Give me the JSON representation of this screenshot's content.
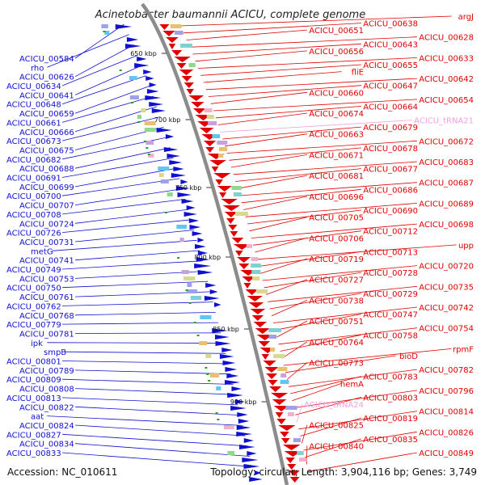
{
  "title": "Acinetobacter baumannii ACICU, complete genome",
  "footer": {
    "accession": "Accession: NC_010611",
    "topology": "Topology: circular; Length: 3,904,116 bp; Genes: 3,749"
  },
  "colors": {
    "forward": "#1010d0",
    "reverse": "#e00000",
    "rna": "#f0a0e0",
    "backbone": "#8c8c8c",
    "tick": "#22a022"
  },
  "scale_ticks": [
    "650 kbp",
    "700 kbp",
    "750 kbp",
    "800 kbp",
    "850 kbp",
    "900 kbp"
  ],
  "left_labels": [
    "ACICU_00584",
    "rho",
    "ACICU_00626",
    "ACICU_00634",
    "ACICU_00641",
    "ACICU_00648",
    "ACICU_00659",
    "ACICU_00661",
    "ACICU_00666",
    "ACICU_00673",
    "ACICU_00675",
    "ACICU_00682",
    "ACICU_00688",
    "ACICU_00691",
    "ACICU_00699",
    "ACICU_00700",
    "ACICU_00707",
    "ACICU_00708",
    "ACICU_00724",
    "ACICU_00726",
    "ACICU_00731",
    "metG",
    "ACICU_00741",
    "ACICU_00749",
    "ACICU_00753",
    "ACICU_00750",
    "ACICU_00761",
    "ACICU_00762",
    "ACICU_00768",
    "ACICU_00779",
    "ACICU_00781",
    "ipk",
    "smpB",
    "ACICU_00801",
    "ACICU_00789",
    "ACICU_00809",
    "ACICU_00808",
    "ACICU_00813",
    "ACICU_00822",
    "aat",
    "ACICU_00824",
    "ACICU_00827",
    "ACICU_00834",
    "ACICU_00833"
  ],
  "right_labels": [
    "argJ",
    "ACICU_00638",
    "ACICU_00651",
    "ACICU_00628",
    "ACICU_00643",
    "ACICU_00656",
    "ACICU_00633",
    "ACICU_00655",
    "fliE",
    "ACICU_00642",
    "ACICU_00647",
    "ACICU_00660",
    "ACICU_00654",
    "ACICU_00664",
    "ACICU_00674",
    "ACICU_tRNA21",
    "ACICU_00679",
    "ACICU_00663",
    "ACICU_00672",
    "ACICU_00678",
    "ACICU_00671",
    "ACICU_00683",
    "ACICU_00677",
    "ACICU_00681",
    "ACICU_00687",
    "ACICU_00686",
    "ACICU_00696",
    "ACICU_00689",
    "ACICU_00690",
    "ACICU_00705",
    "ACICU_00698",
    "ACICU_00712",
    "ACICU_00706",
    "upp",
    "ACICU_00713",
    "ACICU_00719",
    "ACICU_00720",
    "ACICU_00728",
    "ACICU_00727",
    "ACICU_00735",
    "ACICU_00729",
    "ACICU_00738",
    "ACICU_00742",
    "ACICU_00747",
    "ACICU_00751",
    "ACICU_00754",
    "ACICU_00758",
    "ACICU_00764",
    "rpmF",
    "bioD",
    "ACICU_00773",
    "ACICU_00782",
    "ACICU_00783",
    "hemA",
    "ACICU_00796",
    "ACICU_00803",
    "ACICU_tRNA24",
    "ACICU_00814",
    "ACICU_00819",
    "ACICU_00825",
    "ACICU_00826",
    "ACICU_00835",
    "ACICU_00840",
    "ACICU_00849"
  ],
  "rna_labels": [
    "ACICU_tRNA21",
    "ACICU_tRNA24"
  ]
}
